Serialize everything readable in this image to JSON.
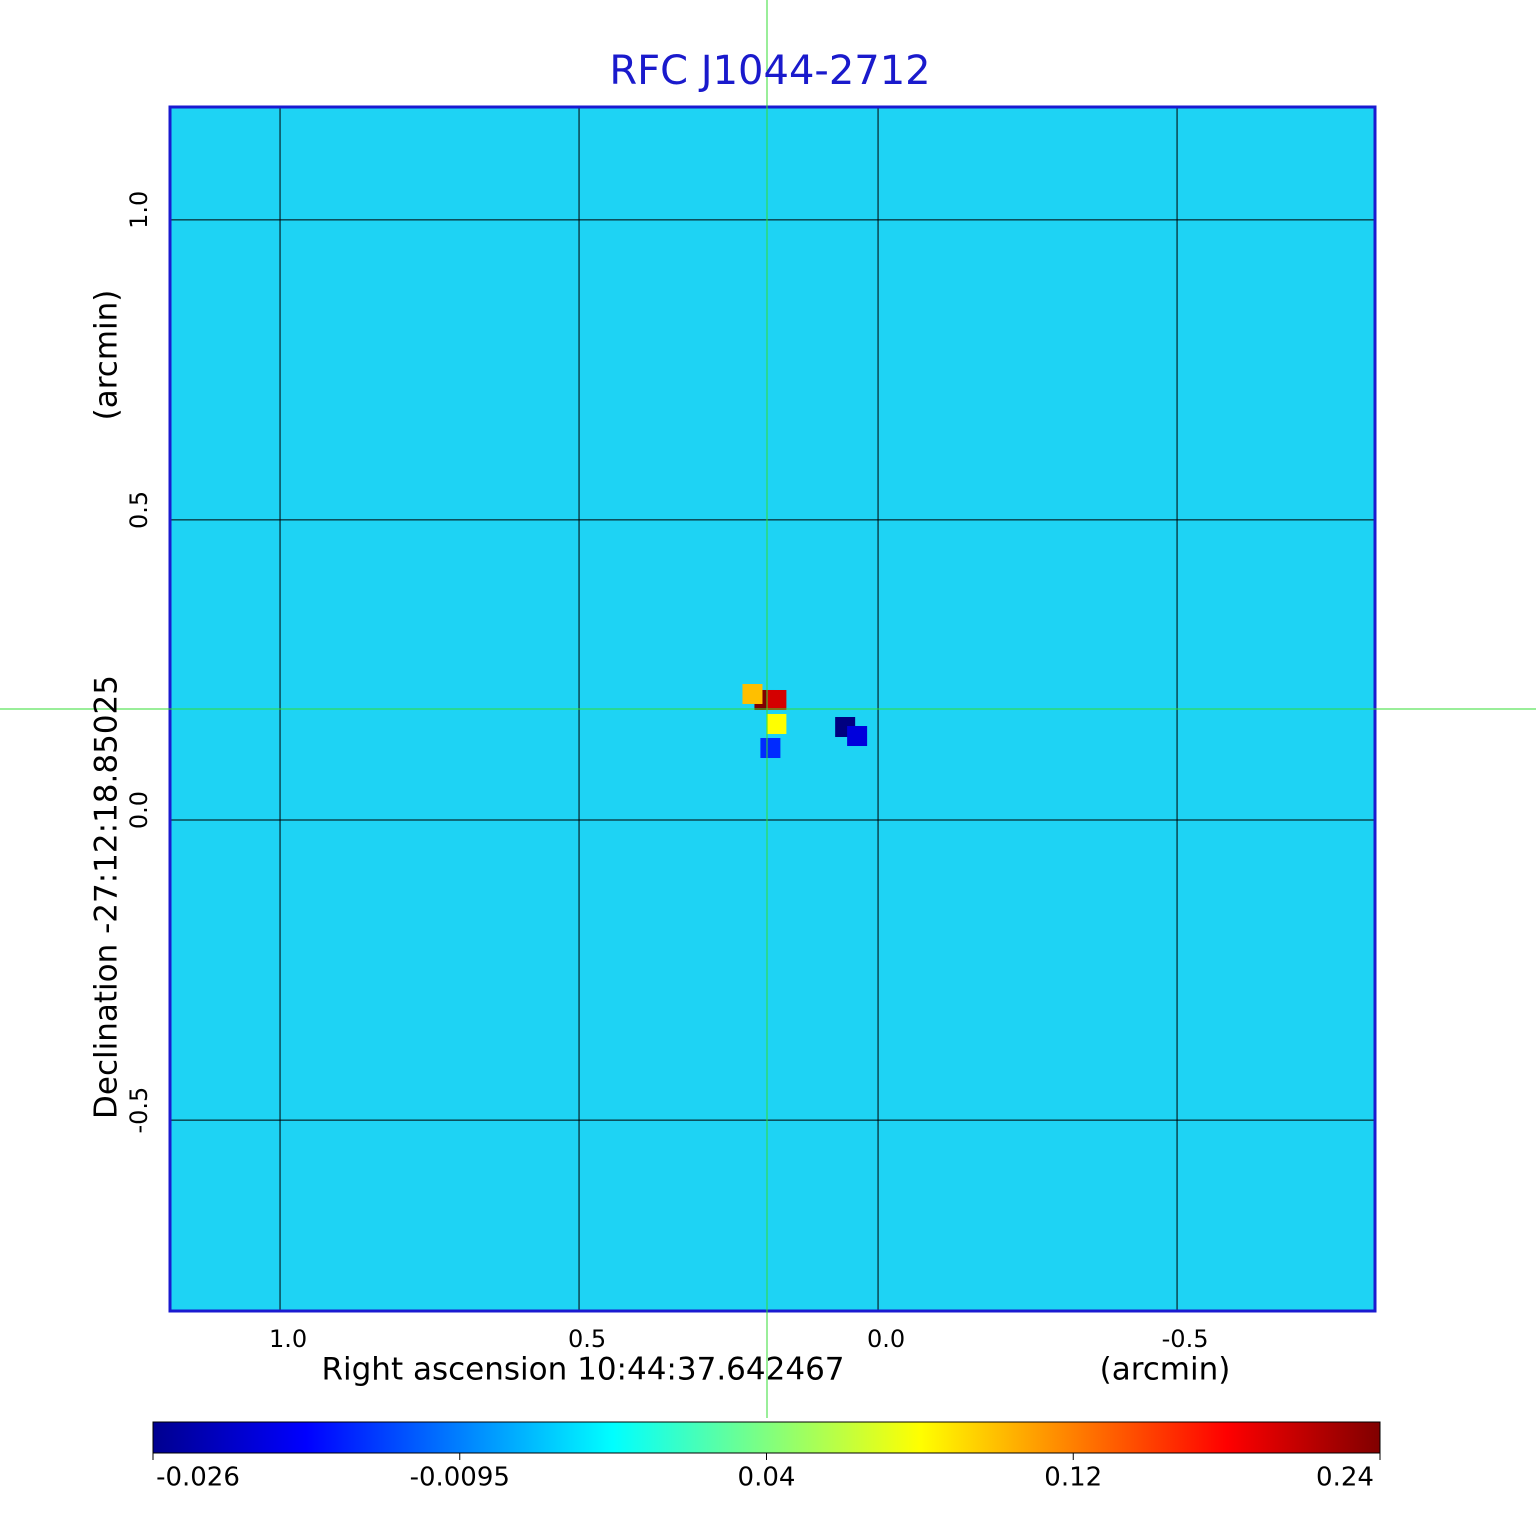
{
  "chart_data": {
    "type": "image",
    "title": "RFC J1044-2712",
    "x_label": "Right ascension  10:44:37.642467",
    "x_unit": "(arcmin)",
    "y_label": "Declination  -27:12:18.85025",
    "y_unit": "(arcmin)",
    "xlim": [
      1.184,
      -0.831
    ],
    "ylim": [
      -0.818,
      1.188
    ],
    "xticks": [
      {
        "value": 1,
        "label": "1.0"
      },
      0.5,
      {
        "value": 0,
        "label": "0.0"
      },
      -0.5
    ],
    "yticks": [
      {
        "value": -0.5,
        "label": "-0.5"
      },
      {
        "value": 0,
        "label": "0.0"
      },
      0.5,
      {
        "value": 1,
        "label": "1.0"
      }
    ],
    "grid": true,
    "colorbar_ticks": [
      -0.026,
      -0.0095,
      0.04,
      0.12,
      0.24
    ],
    "features": [
      {
        "x": 0.19,
        "y": 0.2,
        "value": 0.24
      },
      {
        "x": 0.17,
        "y": 0.2,
        "value": 0.2
      },
      {
        "x": 0.21,
        "y": 0.21,
        "value": 0.1
      },
      {
        "x": 0.17,
        "y": 0.16,
        "value": 0.08
      },
      {
        "x": 0.055,
        "y": 0.155,
        "value": -0.026
      },
      {
        "x": 0.035,
        "y": 0.14,
        "value": -0.02
      },
      {
        "x": 0.18,
        "y": 0.12,
        "value": -0.015
      }
    ]
  }
}
